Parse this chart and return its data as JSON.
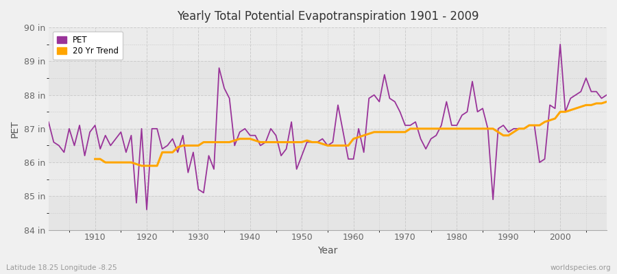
{
  "title": "Yearly Total Potential Evapotranspiration 1901 - 2009",
  "xlabel": "Year",
  "ylabel": "PET",
  "bottom_left_text": "Latitude 18.25 Longitude -8.25",
  "bottom_right_text": "worldspecies.org",
  "pet_color": "#993399",
  "trend_color": "#ffa500",
  "bg_color": "#f0f0f0",
  "plot_bg_color": "#ebebeb",
  "ylim": [
    84,
    90
  ],
  "yticks": [
    84,
    85,
    86,
    87,
    88,
    89,
    90
  ],
  "ytick_labels": [
    "84 in",
    "85 in",
    "86 in",
    "87 in",
    "88 in",
    "89 in",
    "90 in"
  ],
  "xticks": [
    1910,
    1920,
    1930,
    1940,
    1950,
    1960,
    1970,
    1980,
    1990,
    2000
  ],
  "years": [
    1901,
    1902,
    1903,
    1904,
    1905,
    1906,
    1907,
    1908,
    1909,
    1910,
    1911,
    1912,
    1913,
    1914,
    1915,
    1916,
    1917,
    1918,
    1919,
    1920,
    1921,
    1922,
    1923,
    1924,
    1925,
    1926,
    1927,
    1928,
    1929,
    1930,
    1931,
    1932,
    1933,
    1934,
    1935,
    1936,
    1937,
    1938,
    1939,
    1940,
    1941,
    1942,
    1943,
    1944,
    1945,
    1946,
    1947,
    1948,
    1949,
    1950,
    1951,
    1952,
    1953,
    1954,
    1955,
    1956,
    1957,
    1958,
    1959,
    1960,
    1961,
    1962,
    1963,
    1964,
    1965,
    1966,
    1967,
    1968,
    1969,
    1970,
    1971,
    1972,
    1973,
    1974,
    1975,
    1976,
    1977,
    1978,
    1979,
    1980,
    1981,
    1982,
    1983,
    1984,
    1985,
    1986,
    1987,
    1988,
    1989,
    1990,
    1991,
    1992,
    1993,
    1994,
    1995,
    1996,
    1997,
    1998,
    1999,
    2000,
    2001,
    2002,
    2003,
    2004,
    2005,
    2006,
    2007,
    2008,
    2009
  ],
  "pet_values": [
    87.2,
    86.6,
    86.5,
    86.3,
    87.0,
    86.5,
    87.1,
    86.2,
    86.9,
    87.1,
    86.4,
    86.8,
    86.5,
    86.7,
    86.9,
    86.3,
    86.8,
    84.8,
    87.0,
    84.6,
    87.0,
    87.0,
    86.4,
    86.5,
    86.7,
    86.3,
    86.8,
    85.7,
    86.3,
    85.2,
    85.1,
    86.2,
    85.8,
    88.8,
    88.2,
    87.9,
    86.5,
    86.9,
    87.0,
    86.8,
    86.8,
    86.5,
    86.6,
    87.0,
    86.8,
    86.2,
    86.4,
    87.2,
    85.8,
    86.2,
    86.6,
    86.6,
    86.6,
    86.7,
    86.5,
    86.6,
    87.7,
    86.9,
    86.1,
    86.1,
    87.0,
    86.3,
    87.9,
    88.0,
    87.8,
    88.6,
    87.9,
    87.8,
    87.5,
    87.1,
    87.1,
    87.2,
    86.7,
    86.4,
    86.7,
    86.8,
    87.1,
    87.8,
    87.1,
    87.1,
    87.4,
    87.5,
    88.4,
    87.5,
    87.6,
    87.0,
    84.9,
    87.0,
    87.1,
    86.9,
    87.0,
    87.0,
    87.0,
    87.1,
    87.1,
    86.0,
    86.1,
    87.7,
    87.6,
    89.5,
    87.5,
    87.9,
    88.0,
    88.1,
    88.5,
    88.1,
    88.1,
    87.9,
    88.0
  ],
  "trend_years": [
    1910,
    1911,
    1912,
    1913,
    1914,
    1915,
    1916,
    1917,
    1918,
    1919,
    1920,
    1921,
    1922,
    1923,
    1924,
    1925,
    1926,
    1927,
    1928,
    1929,
    1930,
    1931,
    1932,
    1933,
    1934,
    1935,
    1936,
    1937,
    1938,
    1939,
    1940,
    1941,
    1942,
    1943,
    1944,
    1945,
    1946,
    1947,
    1948,
    1949,
    1950,
    1951,
    1952,
    1953,
    1954,
    1955,
    1956,
    1957,
    1958,
    1959,
    1960,
    1961,
    1962,
    1963,
    1964,
    1965,
    1966,
    1967,
    1968,
    1969,
    1970,
    1971,
    1972,
    1973,
    1974,
    1975,
    1976,
    1977,
    1978,
    1979,
    1980,
    1981,
    1982,
    1983,
    1984,
    1985,
    1986,
    1987,
    1988,
    1989,
    1990,
    1991,
    1992,
    1993,
    1994,
    1995,
    1996,
    1997,
    1998,
    1999,
    2000,
    2001,
    2002,
    2003,
    2004,
    2005,
    2006,
    2007,
    2008,
    2009
  ],
  "trend_values": [
    86.1,
    86.1,
    86.0,
    86.0,
    86.0,
    86.0,
    86.0,
    86.0,
    85.95,
    85.9,
    85.9,
    85.9,
    85.9,
    86.3,
    86.3,
    86.3,
    86.45,
    86.5,
    86.5,
    86.5,
    86.5,
    86.6,
    86.6,
    86.6,
    86.6,
    86.6,
    86.6,
    86.65,
    86.7,
    86.7,
    86.7,
    86.65,
    86.6,
    86.6,
    86.6,
    86.6,
    86.6,
    86.6,
    86.6,
    86.6,
    86.6,
    86.65,
    86.6,
    86.6,
    86.55,
    86.5,
    86.5,
    86.5,
    86.5,
    86.5,
    86.7,
    86.75,
    86.8,
    86.85,
    86.9,
    86.9,
    86.9,
    86.9,
    86.9,
    86.9,
    86.9,
    87.0,
    87.0,
    87.0,
    87.0,
    87.0,
    87.0,
    87.0,
    87.0,
    87.0,
    87.0,
    87.0,
    87.0,
    87.0,
    87.0,
    87.0,
    87.0,
    87.0,
    86.9,
    86.8,
    86.8,
    86.9,
    87.0,
    87.0,
    87.1,
    87.1,
    87.1,
    87.2,
    87.25,
    87.3,
    87.5,
    87.5,
    87.55,
    87.6,
    87.65,
    87.7,
    87.7,
    87.75,
    87.75,
    87.8
  ]
}
